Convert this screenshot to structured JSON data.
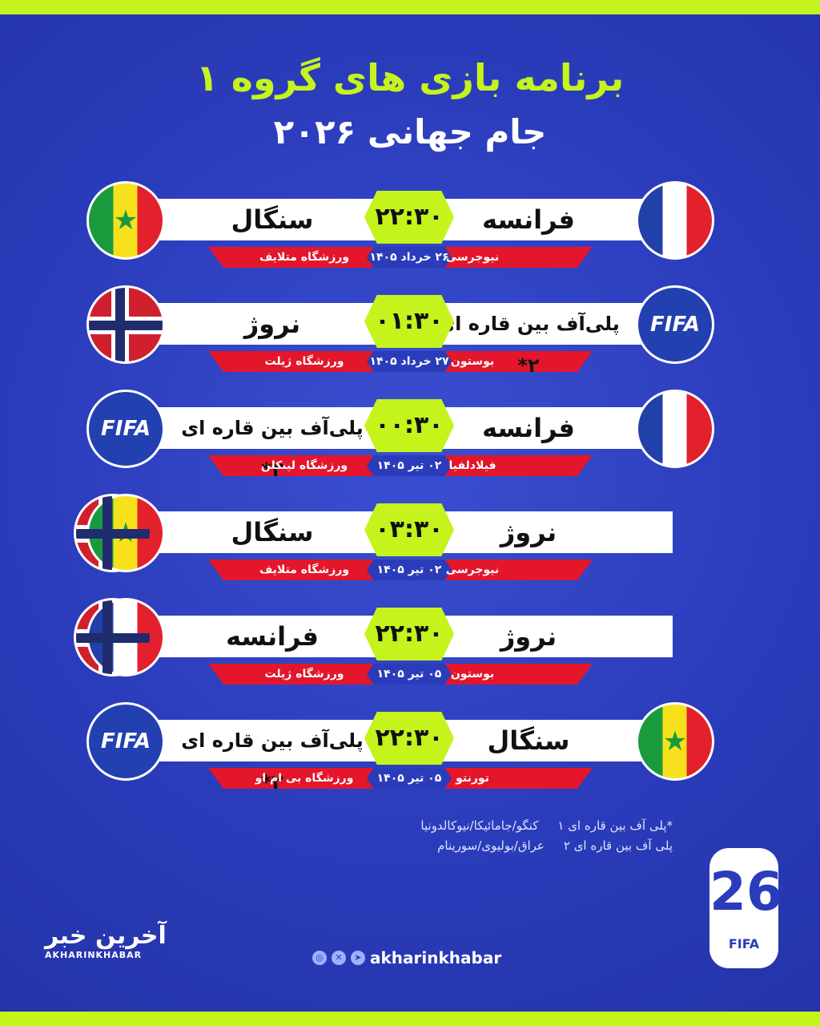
{
  "header": {
    "title": "برنامه بازی های گروه ۱",
    "subtitle": "جام جهانی ۲۰۲۶"
  },
  "colors": {
    "accent": "#c5f31c",
    "background": "#2b3cbb",
    "red": "#e3162c"
  },
  "matches": [
    {
      "home": "فرانسه",
      "home_flag": "france",
      "away": "سنگال",
      "away_flag": "senegal",
      "time": "۲۲:۳۰",
      "date": "۲۶ خرداد ۱۴۰۵",
      "city": "نیوجرسی",
      "venue": "ورزشگاه متلایف"
    },
    {
      "home": "پلی‌آف بین قاره ای ۲*",
      "home_flag": "fifa",
      "away": "نروژ",
      "away_flag": "norway",
      "time": "۰۱:۳۰",
      "date": "۲۷ خرداد ۱۴۰۵",
      "city": "بوستون",
      "venue": "ورزشگاه ژیلت"
    },
    {
      "home": "فرانسه",
      "home_flag": "france",
      "away": "پلی‌آف بین قاره ای ۲*",
      "away_flag": "fifa",
      "time": "۰۰:۳۰",
      "date": "۰۲ تیر ۱۴۰۵",
      "city": "فیلادلفیا",
      "venue": "ورزشگاه لینکلن"
    },
    {
      "home": "نروژ",
      "home_flag": "norway",
      "away": "سنگال",
      "away_flag": "senegal",
      "time": "۰۳:۳۰",
      "date": "۰۲ تیر ۱۴۰۵",
      "city": "نیوجرسی",
      "venue": "ورزشگاه متلایف"
    },
    {
      "home": "نروژ",
      "home_flag": "norway",
      "away": "فرانسه",
      "away_flag": "france",
      "time": "۲۲:۳۰",
      "date": "۰۵ تیر ۱۴۰۵",
      "city": "بوستون",
      "venue": "ورزشگاه ژیلت"
    },
    {
      "home": "سنگال",
      "home_flag": "senegal",
      "away": "پلی‌آف بین قاره ای ۲*",
      "away_flag": "fifa",
      "time": "۲۲:۳۰",
      "date": "۰۵ تیر ۱۴۰۵",
      "city": "تورنتو",
      "venue": "ورزشگاه بی ام او"
    }
  ],
  "notes": [
    {
      "label": "*پلی آف بین قاره ای ۱",
      "teams": "کنگو/جامائیکا/نیوکالدونیا"
    },
    {
      "label": "پلی آف بین قاره ای ۲",
      "teams": "عراق/بولیوی/سورینام"
    }
  ],
  "fifa_text": "FIFA",
  "footer": {
    "brand_fa": "آخرین خبر",
    "brand_en": "AKHARINKHABAR",
    "handle": "akharinkhabar",
    "icons": [
      "instagram-icon",
      "x-icon",
      "telegram-icon"
    ],
    "logo_number": "26",
    "logo_text": "FIFA"
  }
}
